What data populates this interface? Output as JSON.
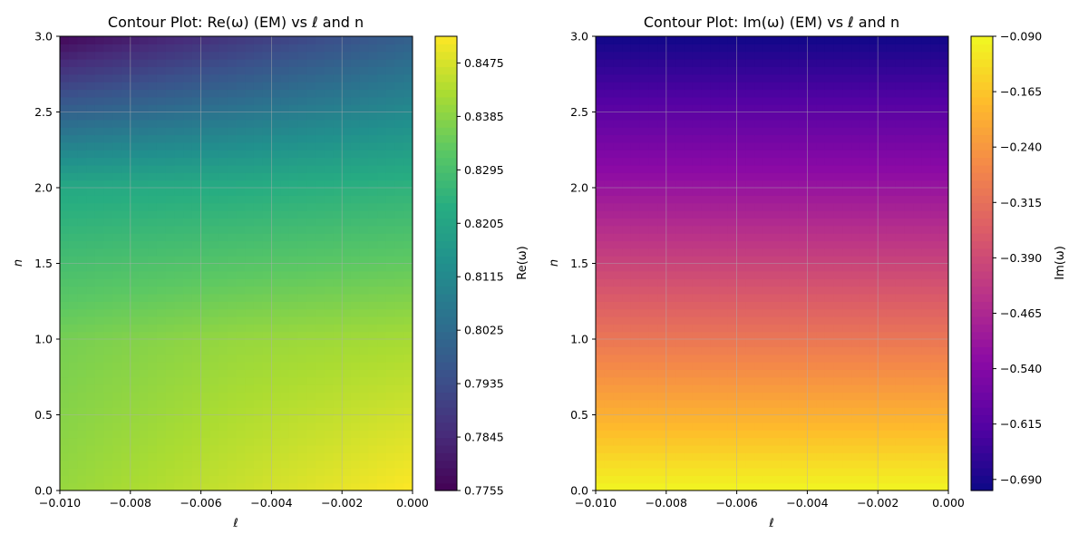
{
  "chart_data": [
    {
      "type": "heatmap",
      "title": "Contour Plot: Re(ω) (EM) vs ℓ and n",
      "xlabel": "ℓ",
      "ylabel": "n",
      "xlim": [
        -0.01,
        0.0
      ],
      "ylim": [
        0.0,
        3.0
      ],
      "xticks": [
        "−0.010",
        "−0.008",
        "−0.006",
        "−0.004",
        "−0.002",
        "0.000"
      ],
      "yticks": [
        "0.0",
        "0.5",
        "1.0",
        "1.5",
        "2.0",
        "2.5",
        "3.0"
      ],
      "colormap": "viridis",
      "grid": true,
      "colorbar": {
        "label": "Re(ω)",
        "range": [
          0.7755,
          0.852
        ],
        "ticks": [
          "0.7755",
          "0.7845",
          "0.7935",
          "0.8025",
          "0.8115",
          "0.8205",
          "0.8295",
          "0.8385",
          "0.8475"
        ]
      },
      "surface": {
        "x": [
          -0.01,
          -0.005,
          0.0
        ],
        "y": [
          0.0,
          1.0,
          2.0,
          3.0
        ],
        "z": [
          [
            0.84,
            0.846,
            0.852
          ],
          [
            0.836,
            0.84,
            0.842
          ],
          [
            0.822,
            0.823,
            0.825
          ],
          [
            0.777,
            0.788,
            0.799
          ]
        ]
      }
    },
    {
      "type": "heatmap",
      "title": "Contour Plot: Im(ω) (EM) vs ℓ and n",
      "xlabel": "ℓ",
      "ylabel": "n",
      "xlim": [
        -0.01,
        0.0
      ],
      "ylim": [
        0.0,
        3.0
      ],
      "xticks": [
        "−0.010",
        "−0.008",
        "−0.006",
        "−0.004",
        "−0.002",
        "0.000"
      ],
      "yticks": [
        "0.0",
        "0.5",
        "1.0",
        "1.5",
        "2.0",
        "2.5",
        "3.0"
      ],
      "colormap": "plasma",
      "grid": true,
      "colorbar": {
        "label": "Im(ω)",
        "range": [
          -0.705,
          -0.09
        ],
        "ticks": [
          "−0.090",
          "−0.165",
          "−0.240",
          "−0.315",
          "−0.390",
          "−0.465",
          "−0.540",
          "−0.615",
          "−0.690"
        ]
      },
      "surface": {
        "x": [
          -0.01,
          -0.005,
          0.0
        ],
        "y": [
          0.0,
          1.0,
          2.0,
          3.0
        ],
        "z": [
          [
            -0.095,
            -0.095,
            -0.095
          ],
          [
            -0.3,
            -0.3,
            -0.3
          ],
          [
            -0.505,
            -0.505,
            -0.505
          ],
          [
            -0.7,
            -0.7,
            -0.7
          ]
        ]
      }
    }
  ]
}
